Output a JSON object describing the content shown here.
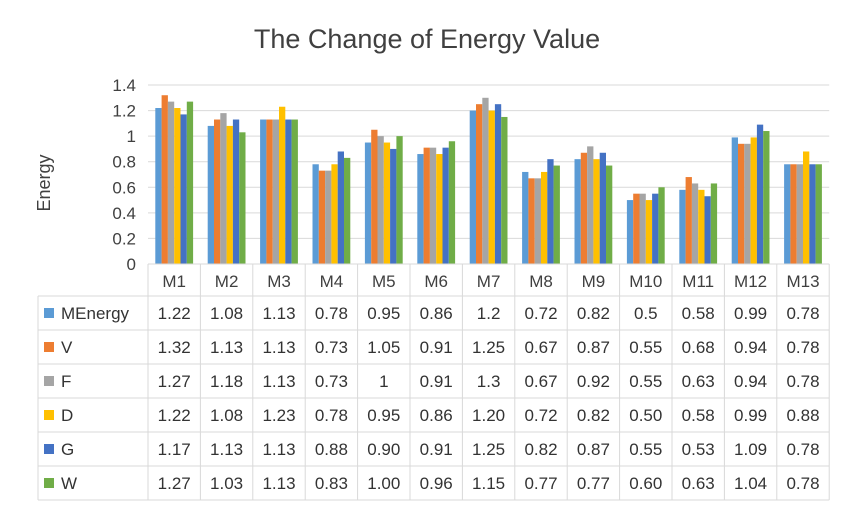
{
  "chart_data": {
    "type": "bar",
    "title": "The Change of Energy Value",
    "ylabel": "Energy",
    "xlabel": "",
    "ylim": [
      0,
      1.4
    ],
    "yticks": [
      "0",
      "0.2",
      "0.4",
      "0.6",
      "0.8",
      "1",
      "1.2",
      "1.4"
    ],
    "grid": true,
    "legend": "data-table",
    "categories": [
      "M1",
      "M2",
      "M3",
      "M4",
      "M5",
      "M6",
      "M7",
      "M8",
      "M9",
      "M10",
      "M11",
      "M12",
      "M13"
    ],
    "series": [
      {
        "name": "MEnergy",
        "color": "#5B9BD5",
        "values": [
          1.22,
          1.08,
          1.13,
          0.78,
          0.95,
          0.86,
          1.2,
          0.72,
          0.82,
          0.5,
          0.58,
          0.99,
          0.78
        ],
        "labels": [
          "1.22",
          "1.08",
          "1.13",
          "0.78",
          "0.95",
          "0.86",
          "1.2",
          "0.72",
          "0.82",
          "0.5",
          "0.58",
          "0.99",
          "0.78"
        ]
      },
      {
        "name": "V",
        "color": "#ED7D31",
        "values": [
          1.32,
          1.13,
          1.13,
          0.73,
          1.05,
          0.91,
          1.25,
          0.67,
          0.87,
          0.55,
          0.68,
          0.94,
          0.78
        ],
        "labels": [
          "1.32",
          "1.13",
          "1.13",
          "0.73",
          "1.05",
          "0.91",
          "1.25",
          "0.67",
          "0.87",
          "0.55",
          "0.68",
          "0.94",
          "0.78"
        ]
      },
      {
        "name": "F",
        "color": "#A5A5A5",
        "values": [
          1.27,
          1.18,
          1.13,
          0.73,
          1,
          0.91,
          1.3,
          0.67,
          0.92,
          0.55,
          0.63,
          0.94,
          0.78
        ],
        "labels": [
          "1.27",
          "1.18",
          "1.13",
          "0.73",
          "1",
          "0.91",
          "1.3",
          "0.67",
          "0.92",
          "0.55",
          "0.63",
          "0.94",
          "0.78"
        ]
      },
      {
        "name": "D",
        "color": "#FFC000",
        "values": [
          1.22,
          1.08,
          1.23,
          0.78,
          0.95,
          0.86,
          1.2,
          0.72,
          0.82,
          0.5,
          0.58,
          0.99,
          0.88
        ],
        "labels": [
          "1.22",
          "1.08",
          "1.23",
          "0.78",
          "0.95",
          "0.86",
          "1.20",
          "0.72",
          "0.82",
          "0.50",
          "0.58",
          "0.99",
          "0.88"
        ]
      },
      {
        "name": "G",
        "color": "#4472C4",
        "values": [
          1.17,
          1.13,
          1.13,
          0.88,
          0.9,
          0.91,
          1.25,
          0.82,
          0.87,
          0.55,
          0.53,
          1.09,
          0.78
        ],
        "labels": [
          "1.17",
          "1.13",
          "1.13",
          "0.88",
          "0.90",
          "0.91",
          "1.25",
          "0.82",
          "0.87",
          "0.55",
          "0.53",
          "1.09",
          "0.78"
        ]
      },
      {
        "name": "W",
        "color": "#70AD47",
        "values": [
          1.27,
          1.03,
          1.13,
          0.83,
          1,
          0.96,
          1.15,
          0.77,
          0.77,
          0.6,
          0.63,
          1.04,
          0.78
        ],
        "labels": [
          "1.27",
          "1.03",
          "1.13",
          "0.83",
          "1.00",
          "0.96",
          "1.15",
          "0.77",
          "0.77",
          "0.60",
          "0.63",
          "1.04",
          "0.78"
        ]
      }
    ]
  }
}
